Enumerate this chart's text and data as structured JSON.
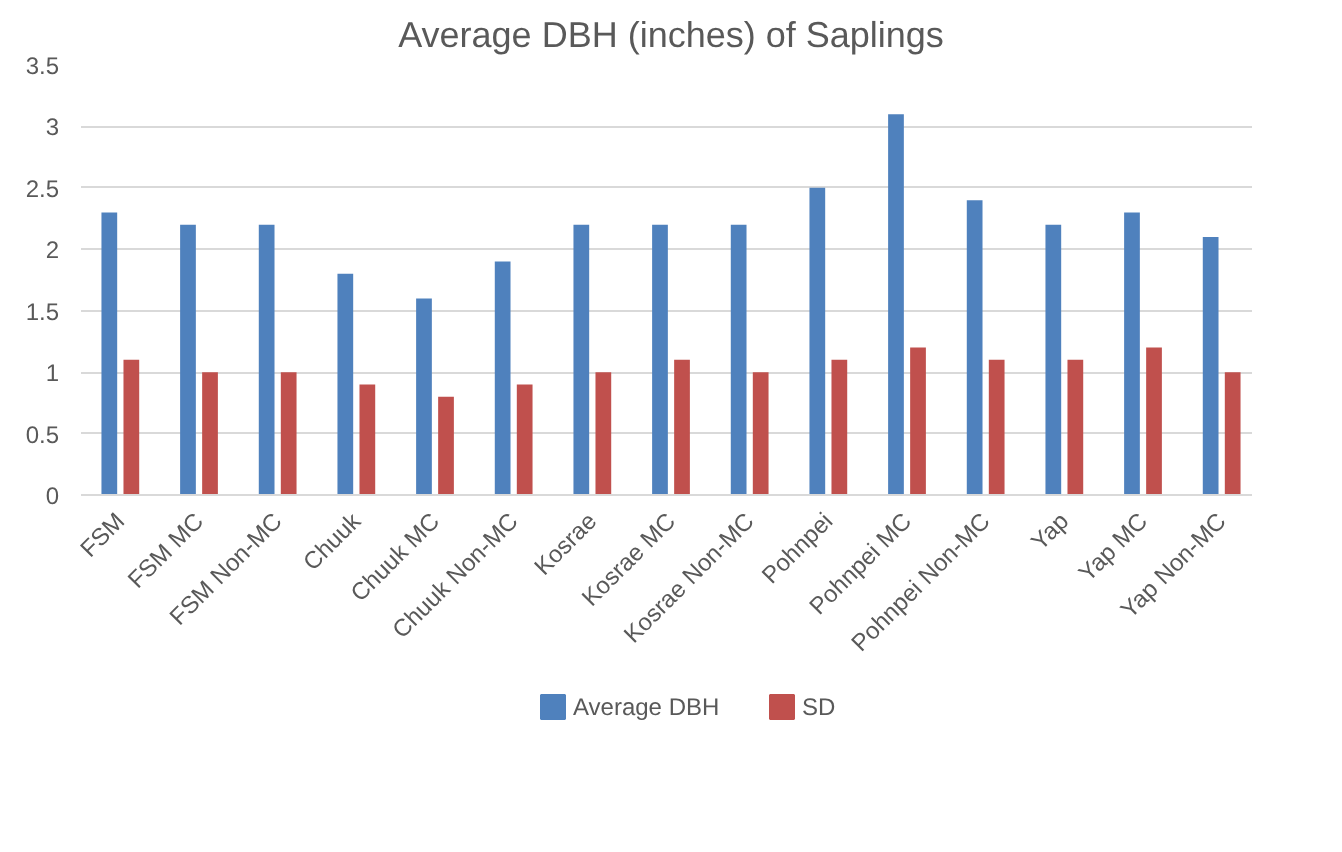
{
  "chart_data": {
    "type": "bar",
    "title": "Average DBH (inches) of Saplings",
    "categories": [
      "FSM",
      "FSM MC",
      "FSM Non-MC",
      "Chuuk",
      "Chuuk MC",
      "Chuuk Non-MC",
      "Kosrae",
      "Kosrae MC",
      "Kosrae Non-MC",
      "Pohnpei",
      "Pohnpei MC",
      "Pohnpei Non-MC",
      "Yap",
      "Yap MC",
      "Yap Non-MC"
    ],
    "series": [
      {
        "name": "Average DBH",
        "color": "#4f81bd",
        "values": [
          2.3,
          2.2,
          2.2,
          1.8,
          1.6,
          1.9,
          2.2,
          2.2,
          2.2,
          2.5,
          3.1,
          2.4,
          2.2,
          2.3,
          2.1
        ]
      },
      {
        "name": "SD",
        "color": "#c0504d",
        "values": [
          1.1,
          1.0,
          1.0,
          0.9,
          0.8,
          0.9,
          1.0,
          1.1,
          1.0,
          1.1,
          1.2,
          1.1,
          1.1,
          1.2,
          1.0
        ]
      }
    ],
    "ylim": [
      0,
      3.5
    ],
    "yticks": [
      0,
      0.5,
      1,
      1.5,
      2,
      2.5,
      3,
      3.5
    ],
    "grid": "y",
    "legend": "bottom"
  }
}
